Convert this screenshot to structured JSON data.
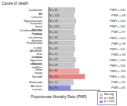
{
  "chart_data": {
    "type": "bar",
    "orientation": "horizontal",
    "title": "Cause of death",
    "x_label": "Proportionate Mortality Ratio (PMR)",
    "categories": [
      "Leukemia",
      "All cancers",
      "Hypertension",
      "Ischemic heart disease",
      "Cerebrovascular disease",
      "Other circulatory disease",
      "Pneumonia",
      "COPD",
      "Alcoholic liver disease",
      "Other digestive disease",
      "Diabetes mellitus",
      "Other injury",
      "Suicide",
      "Homicide",
      "All other causes"
    ],
    "values": [
      102,
      98,
      105,
      100,
      97,
      103,
      99,
      101,
      96,
      104,
      100,
      118,
      140,
      95,
      85
    ],
    "value_labels": [
      "PMR = 102",
      "PMR = 98",
      "PMR = 105",
      "PMR = 100",
      "PMR = 97",
      "PMR = 103",
      "PMR = 99",
      "PMR = 101",
      "PMR = 96",
      "PMR = 104",
      "PMR = 100",
      "PMR = 118",
      "PMR = 140",
      "PMR = 95",
      "PMR = 85"
    ],
    "n_labels": [
      "N = 35",
      "N = 120",
      "N = 18",
      "N = 210",
      "N = 45",
      "N = 30",
      "N = 25",
      "N = 40",
      "N = 15",
      "N = 22",
      "N = 28",
      "N = 60",
      "N = 75",
      "N = 12",
      "N = 90"
    ],
    "colors": [
      "#c8c8c8",
      "#c8c8c8",
      "#c8c8c8",
      "#c8c8c8",
      "#c8c8c8",
      "#c8c8c8",
      "#c8c8c8",
      "#c8c8c8",
      "#c8c8c8",
      "#c8c8c8",
      "#c8c8c8",
      "#f4a0a0",
      "#f08080",
      "#c8c8c8",
      "#8c8cf0"
    ],
    "xlim": [
      0,
      200
    ],
    "tick_labels": "y",
    "data_labels": true,
    "legend": "lower right",
    "legend_entries": [
      {
        "name": "Non-sig",
        "color": "#c8c8c8"
      },
      {
        "name": "p < 0.05",
        "color": "#f4a0a0"
      },
      {
        "name": "p < 0.01",
        "color": "#8c8cf0"
      }
    ]
  }
}
